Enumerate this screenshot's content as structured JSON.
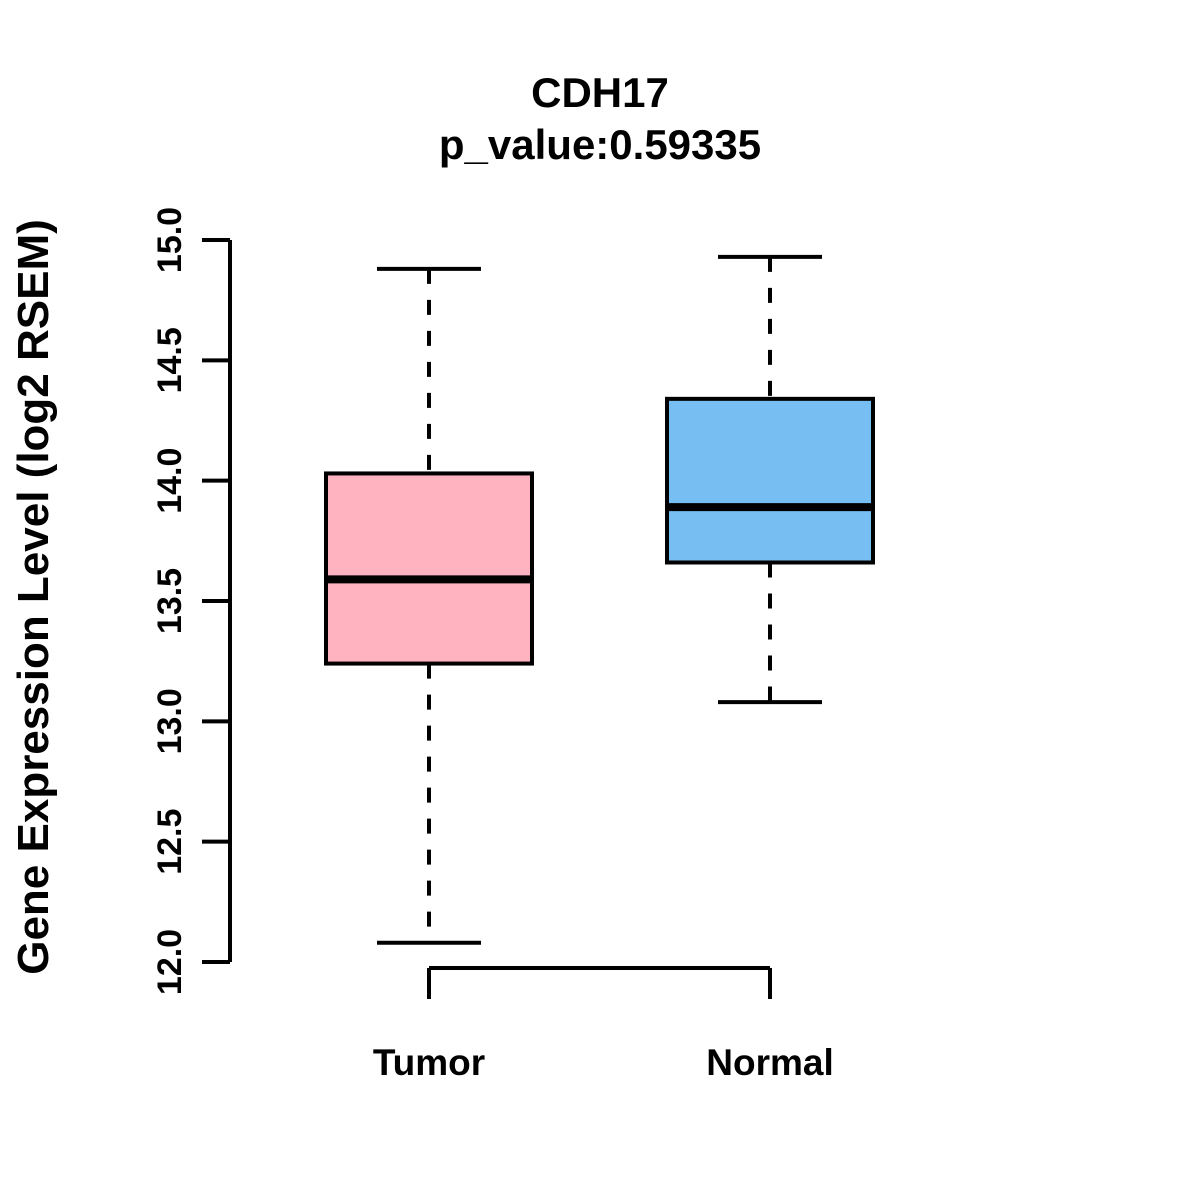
{
  "header": {
    "title": "CDH17",
    "subtitle": "p_value:0.59335"
  },
  "chart_data": {
    "type": "boxplot",
    "title": "CDH17",
    "subtitle": "p_value:0.59335",
    "ylabel": "Gene Expression Level (log2 RSEM)",
    "xlabel": "",
    "ylim": [
      12.0,
      15.0
    ],
    "yticks": [
      12.0,
      12.5,
      13.0,
      13.5,
      14.0,
      14.5,
      15.0
    ],
    "grid": false,
    "legend": "none",
    "categories": [
      "Tumor",
      "Normal"
    ],
    "series": [
      {
        "name": "Tumor",
        "box_color": "#FFB3C1",
        "lower_whisker": 12.08,
        "q1": 13.24,
        "median": 13.59,
        "q3": 14.03,
        "upper_whisker": 14.88
      },
      {
        "name": "Normal",
        "box_color": "#77BFF3",
        "lower_whisker": 13.08,
        "q1": 13.66,
        "median": 13.89,
        "q3": 14.34,
        "upper_whisker": 14.93
      }
    ],
    "colors": {
      "stroke": "#000000",
      "background": "#FFFFFF",
      "tumor_box": "#FFB3C1",
      "normal_box": "#77BFF3"
    }
  }
}
